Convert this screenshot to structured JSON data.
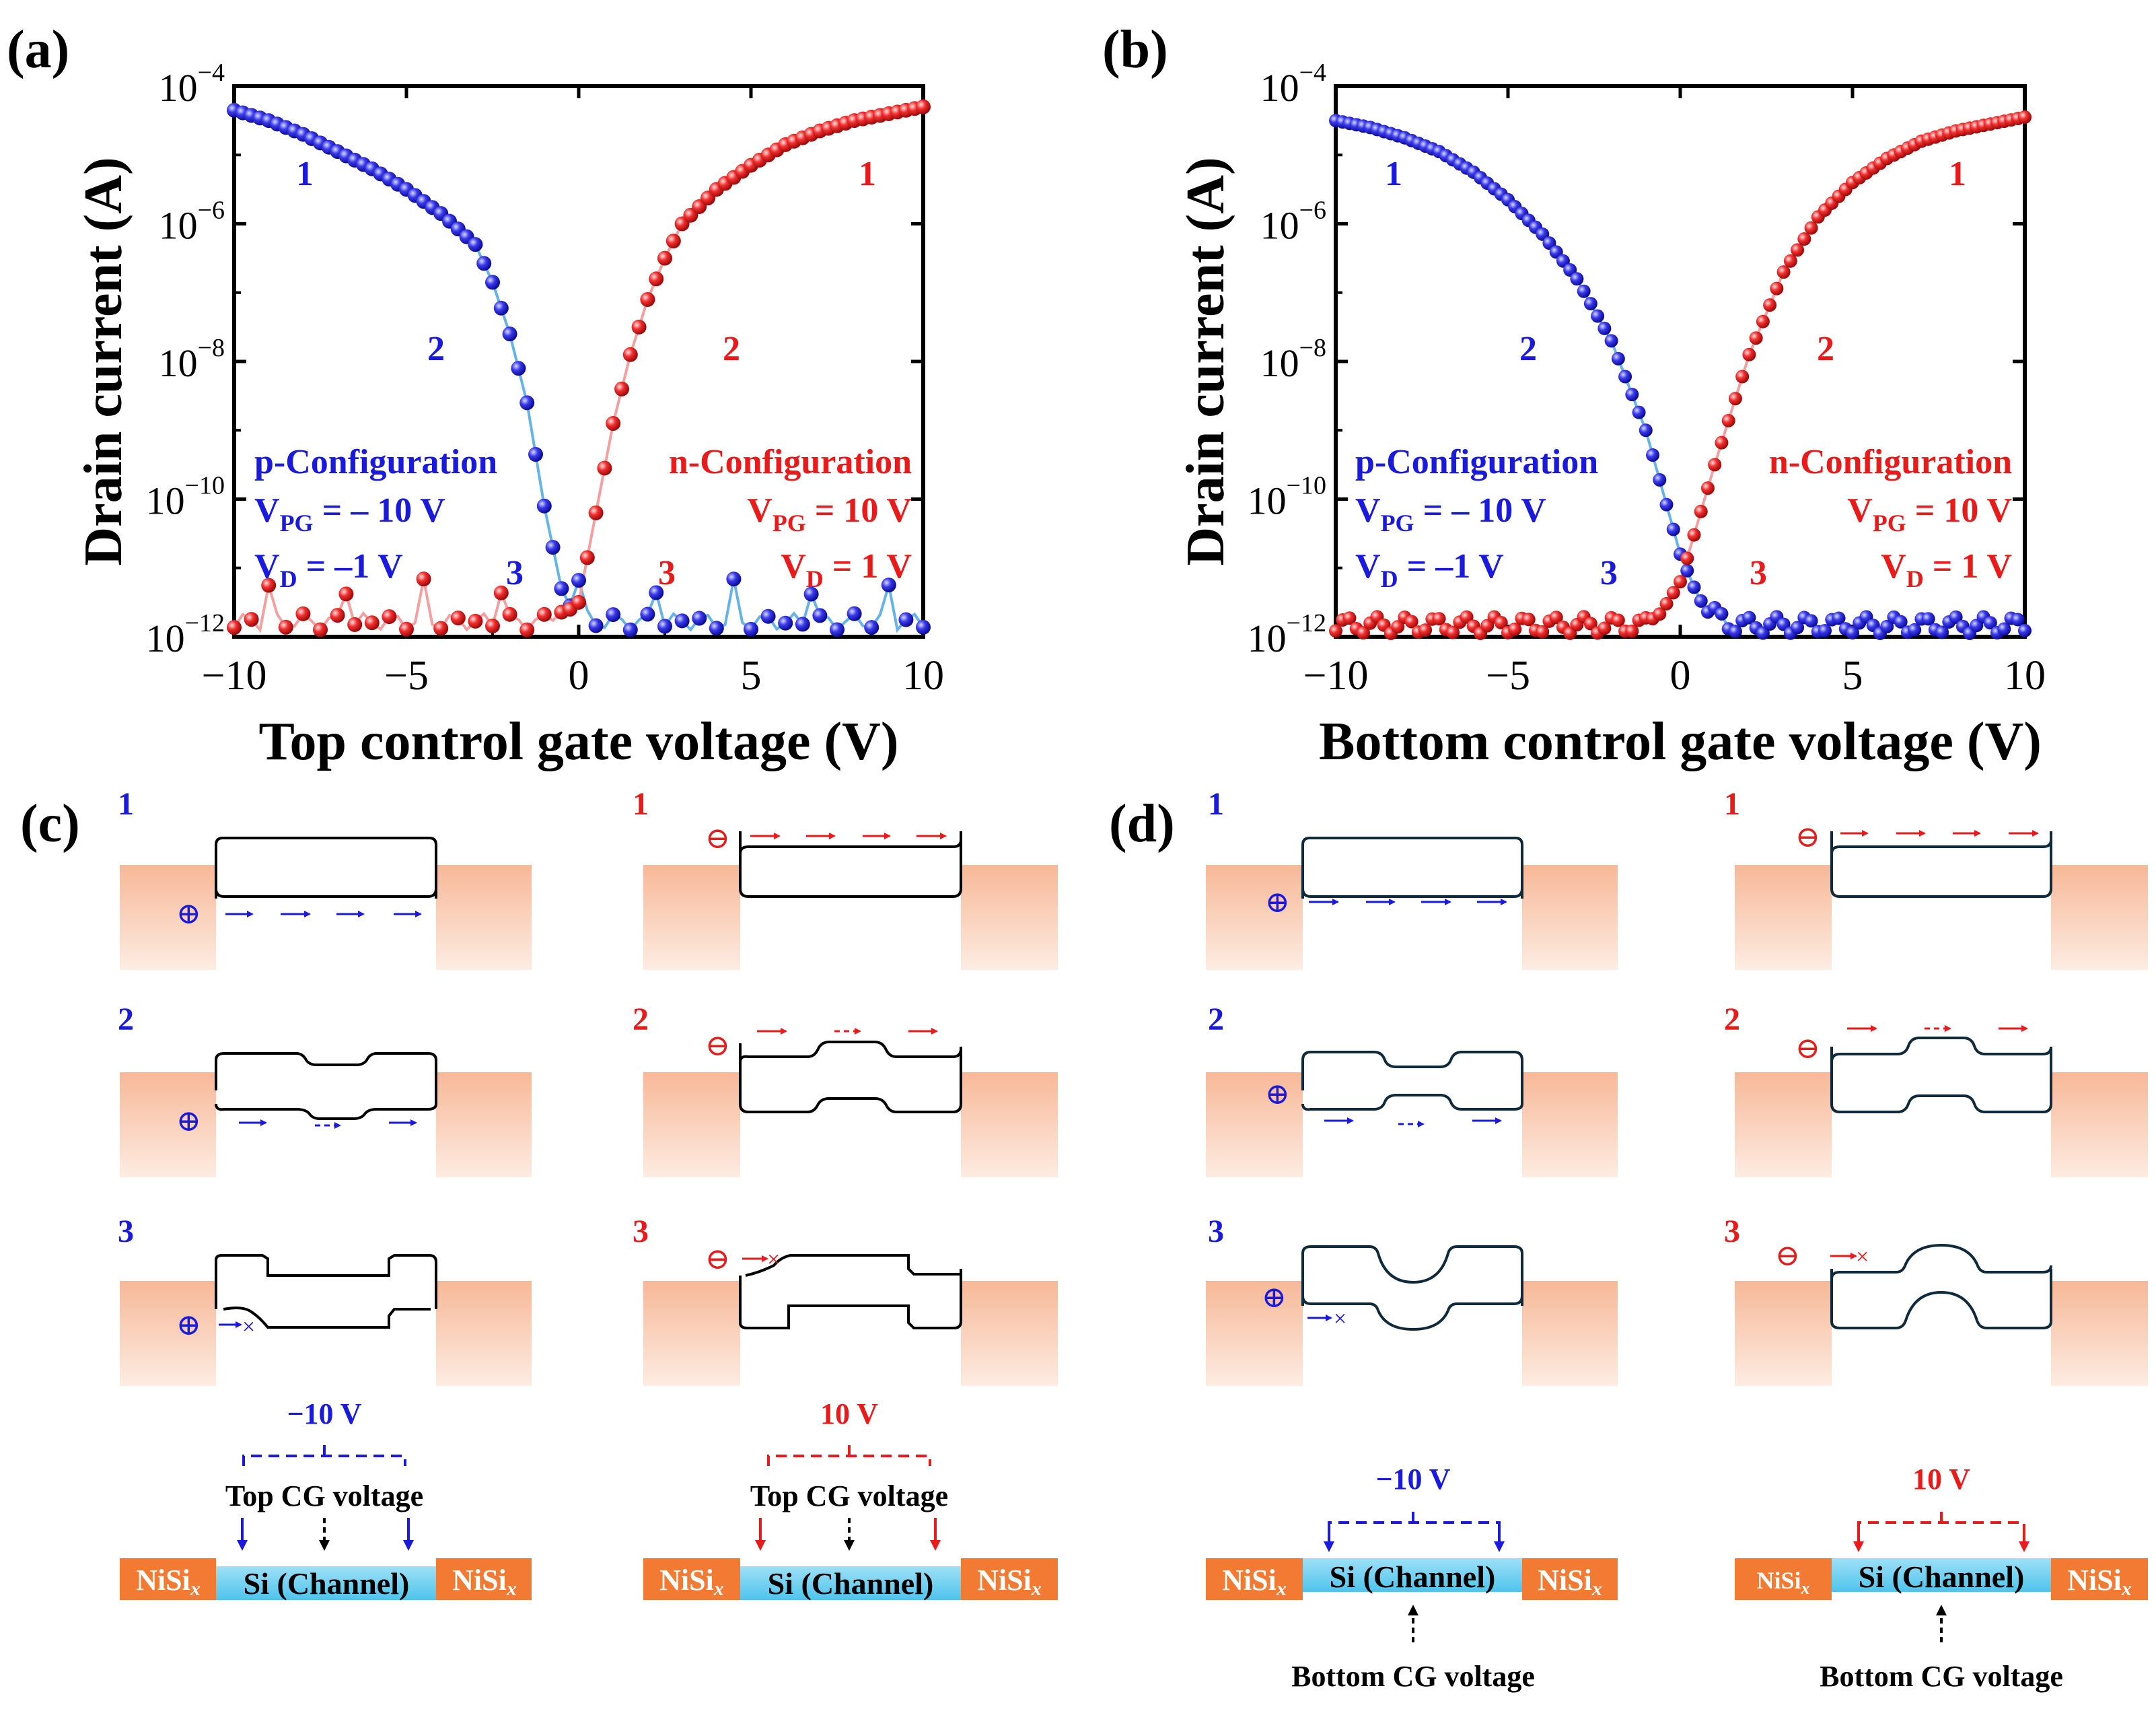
{
  "colors": {
    "p": "#1a1add",
    "n": "#e81a1a",
    "p_line": "#66b3e6",
    "n_line": "#f2a0a0",
    "nisi": "#f37a32",
    "si": "#7fd3f0",
    "contact_top": "#f7b897",
    "contact_bottom": "#fde8dc"
  },
  "chart_data": [
    {
      "panel": "(a)",
      "type": "scatter",
      "yscale": "log",
      "xlabel": "Top control gate voltage (V)",
      "ylabel": "Drain current (A)",
      "xlim": [
        -10,
        10
      ],
      "ylim": [
        1e-12,
        0.0001
      ],
      "xticks": [
        "−10",
        "−5",
        "0",
        "5",
        "10"
      ],
      "yticks": [
        {
          "base": "10",
          "exp": "−12"
        },
        {
          "base": "10",
          "exp": "−10"
        },
        {
          "base": "10",
          "exp": "−8"
        },
        {
          "base": "10",
          "exp": "−6"
        },
        {
          "base": "10",
          "exp": "−4"
        }
      ],
      "series": [
        {
          "name": "p-Configuration",
          "color": "p",
          "x": [
            -10,
            -9,
            -8,
            -7,
            -6,
            -5,
            -4,
            -3,
            -2.5,
            -2,
            -1.5,
            -1,
            -0.5,
            0,
            0.5,
            1,
            2,
            3,
            4,
            5,
            6,
            7,
            8,
            9,
            10
          ],
          "log10_i": [
            -4.35,
            -4.5,
            -4.7,
            -4.95,
            -5.2,
            -5.5,
            -5.85,
            -6.3,
            -6.85,
            -7.6,
            -8.6,
            -10.1,
            -11.3,
            -11.8,
            -11.9,
            -11.9,
            -11.9,
            -11.9,
            -11.9,
            -11.9,
            -11.9,
            -11.9,
            -11.9,
            -11.9,
            -11.9
          ]
        },
        {
          "name": "n-Configuration",
          "color": "n",
          "x": [
            -10,
            -9,
            -8,
            -7,
            -6,
            -5,
            -4,
            -3,
            -2,
            -1,
            -0.5,
            0,
            0.5,
            1,
            1.5,
            2,
            2.5,
            3,
            4,
            5,
            6,
            7,
            8,
            9,
            10
          ],
          "log10_i": [
            -11.9,
            -11.9,
            -11.9,
            -11.9,
            -11.9,
            -11.9,
            -11.9,
            -11.9,
            -11.9,
            -11.9,
            -11.7,
            -11.5,
            -10.2,
            -8.9,
            -7.9,
            -7.1,
            -6.5,
            -6.0,
            -5.5,
            -5.15,
            -4.85,
            -4.65,
            -4.5,
            -4.4,
            -4.3
          ]
        }
      ],
      "annotations": [
        {
          "text": "1",
          "color": "p"
        },
        {
          "text": "2",
          "color": "p"
        },
        {
          "text": "3",
          "color": "p"
        },
        {
          "text": "1",
          "color": "n"
        },
        {
          "text": "2",
          "color": "n"
        },
        {
          "text": "3",
          "color": "n"
        },
        {
          "text": "p-Configuration",
          "color": "p"
        },
        {
          "text": "n-Configuration",
          "color": "n"
        }
      ],
      "p_label": {
        "title": "p-Configuration",
        "vpg_main": "V",
        "vpg_sub": "PG",
        "vpg_val": " = – 10 V",
        "vd_main": "V",
        "vd_sub": "D",
        "vd_val": " = –1 V"
      },
      "n_label": {
        "title": "n-Configuration",
        "vpg_main": "V",
        "vpg_sub": "PG",
        "vpg_val": " = 10 V",
        "vd_main": "V",
        "vd_sub": "D",
        "vd_val": " = 1 V"
      }
    },
    {
      "panel": "(b)",
      "type": "scatter",
      "yscale": "log",
      "xlabel": "Bottom control gate voltage (V)",
      "ylabel": "Drain current (A)",
      "xlim": [
        -10,
        10
      ],
      "ylim": [
        1e-12,
        0.0001
      ],
      "xticks": [
        "−10",
        "−5",
        "0",
        "5",
        "10"
      ],
      "yticks": [
        {
          "base": "10",
          "exp": "−12"
        },
        {
          "base": "10",
          "exp": "−10"
        },
        {
          "base": "10",
          "exp": "−8"
        },
        {
          "base": "10",
          "exp": "−6"
        },
        {
          "base": "10",
          "exp": "−4"
        }
      ],
      "series": [
        {
          "name": "p-Configuration",
          "color": "p",
          "x": [
            -10,
            -9,
            -8,
            -7,
            -6,
            -5,
            -4,
            -3,
            -2,
            -1,
            0,
            0.5,
            1,
            1.5,
            2,
            3,
            4,
            5,
            6,
            7,
            8,
            9,
            10
          ],
          "log10_i": [
            -4.5,
            -4.6,
            -4.75,
            -4.95,
            -5.25,
            -5.65,
            -6.15,
            -6.8,
            -7.7,
            -9.0,
            -10.8,
            -11.4,
            -11.8,
            -11.95,
            -11.95,
            -11.95,
            -11.95,
            -11.95,
            -11.95,
            -11.95,
            -11.95,
            -11.95,
            -11.95
          ]
        },
        {
          "name": "n-Configuration",
          "color": "n",
          "x": [
            -10,
            -9,
            -8,
            -7,
            -6,
            -5,
            -4,
            -3,
            -2,
            -1,
            -0.5,
            0,
            1,
            2,
            3,
            4,
            5,
            6,
            7,
            8,
            9,
            10
          ],
          "log10_i": [
            -11.95,
            -11.95,
            -11.95,
            -11.95,
            -11.95,
            -11.95,
            -11.95,
            -11.95,
            -11.95,
            -11.95,
            -11.6,
            -11.2,
            -9.5,
            -7.9,
            -6.7,
            -5.9,
            -5.4,
            -5.05,
            -4.8,
            -4.65,
            -4.55,
            -4.45
          ]
        }
      ],
      "annotations": [
        {
          "text": "1",
          "color": "p"
        },
        {
          "text": "2",
          "color": "p"
        },
        {
          "text": "3",
          "color": "p"
        },
        {
          "text": "1",
          "color": "n"
        },
        {
          "text": "2",
          "color": "n"
        },
        {
          "text": "3",
          "color": "n"
        },
        {
          "text": "p-Configuration",
          "color": "p"
        },
        {
          "text": "n-Configuration",
          "color": "n"
        }
      ],
      "p_label": {
        "title": "p-Configuration",
        "vpg_main": "V",
        "vpg_sub": "PG",
        "vpg_val": " = – 10 V",
        "vd_main": "V",
        "vd_sub": "D",
        "vd_val": " = –1 V"
      },
      "n_label": {
        "title": "n-Configuration",
        "vpg_main": "V",
        "vpg_sub": "PG",
        "vpg_val": " = 10 V",
        "vd_main": "V",
        "vd_sub": "D",
        "vd_val": " = 1 V"
      }
    }
  ],
  "panels": {
    "c": {
      "label": "(c)",
      "state_labels": [
        "1",
        "2",
        "3"
      ],
      "hole_symbol": "⊕",
      "electron_symbol": "⊖",
      "blocked": "×",
      "p_voltage": "−10 V",
      "n_voltage": "10 V",
      "gate_text_p": "Top CG voltage",
      "gate_text_n": "Top CG voltage",
      "nisi_main": "NiSi",
      "nisi_sub": "x",
      "channel": "Si (Channel)"
    },
    "d": {
      "label": "(d)",
      "state_labels": [
        "1",
        "2",
        "3"
      ],
      "hole_symbol": "⊕",
      "electron_symbol": "⊖",
      "blocked": "×",
      "p_voltage": "−10 V",
      "n_voltage": "10 V",
      "gate_text_p": "Bottom CG voltage",
      "gate_text_n": "Bottom CG voltage",
      "nisi_main": "NiSi",
      "nisi_sub": "x",
      "channel": "Si (Channel)"
    }
  }
}
